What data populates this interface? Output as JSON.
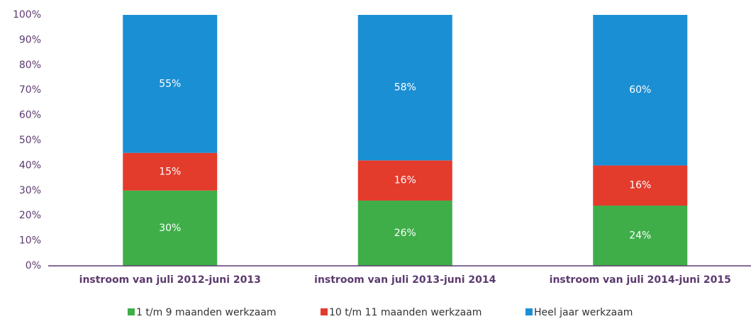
{
  "chart_data": {
    "type": "stacked_bar",
    "categories": [
      "instroom van juli 2012-juni 2013",
      "instroom van juli 2013-juni 2014",
      "instroom van juli 2014-juni 2015"
    ],
    "series": [
      {
        "name": "1 t/m 9 maanden werkzaam",
        "color": "#3fae49",
        "values": [
          30,
          26,
          24
        ],
        "value_labels": [
          "30%",
          "26%",
          "24%"
        ]
      },
      {
        "name": "10 t/m 11 maanden werkzaam",
        "color": "#e33b2c",
        "values": [
          15,
          16,
          16
        ],
        "value_labels": [
          "15%",
          "16%",
          "16%"
        ]
      },
      {
        "name": "Heel jaar werkzaam",
        "color": "#1b8fd4",
        "values": [
          55,
          58,
          60
        ],
        "value_labels": [
          "55%",
          "58%",
          "60%"
        ]
      }
    ],
    "ylim": [
      0,
      100
    ],
    "yticks": [
      {
        "value": 0,
        "label": "0%"
      },
      {
        "value": 10,
        "label": "10%"
      },
      {
        "value": 20,
        "label": "20%"
      },
      {
        "value": 30,
        "label": "30%"
      },
      {
        "value": 40,
        "label": "40%"
      },
      {
        "value": 50,
        "label": "50%"
      },
      {
        "value": 60,
        "label": "60%"
      },
      {
        "value": 70,
        "label": "70%"
      },
      {
        "value": 80,
        "label": "80%"
      },
      {
        "value": 90,
        "label": "90%"
      },
      {
        "value": 100,
        "label": "100%"
      }
    ],
    "grid": false,
    "legend": "bottom"
  }
}
